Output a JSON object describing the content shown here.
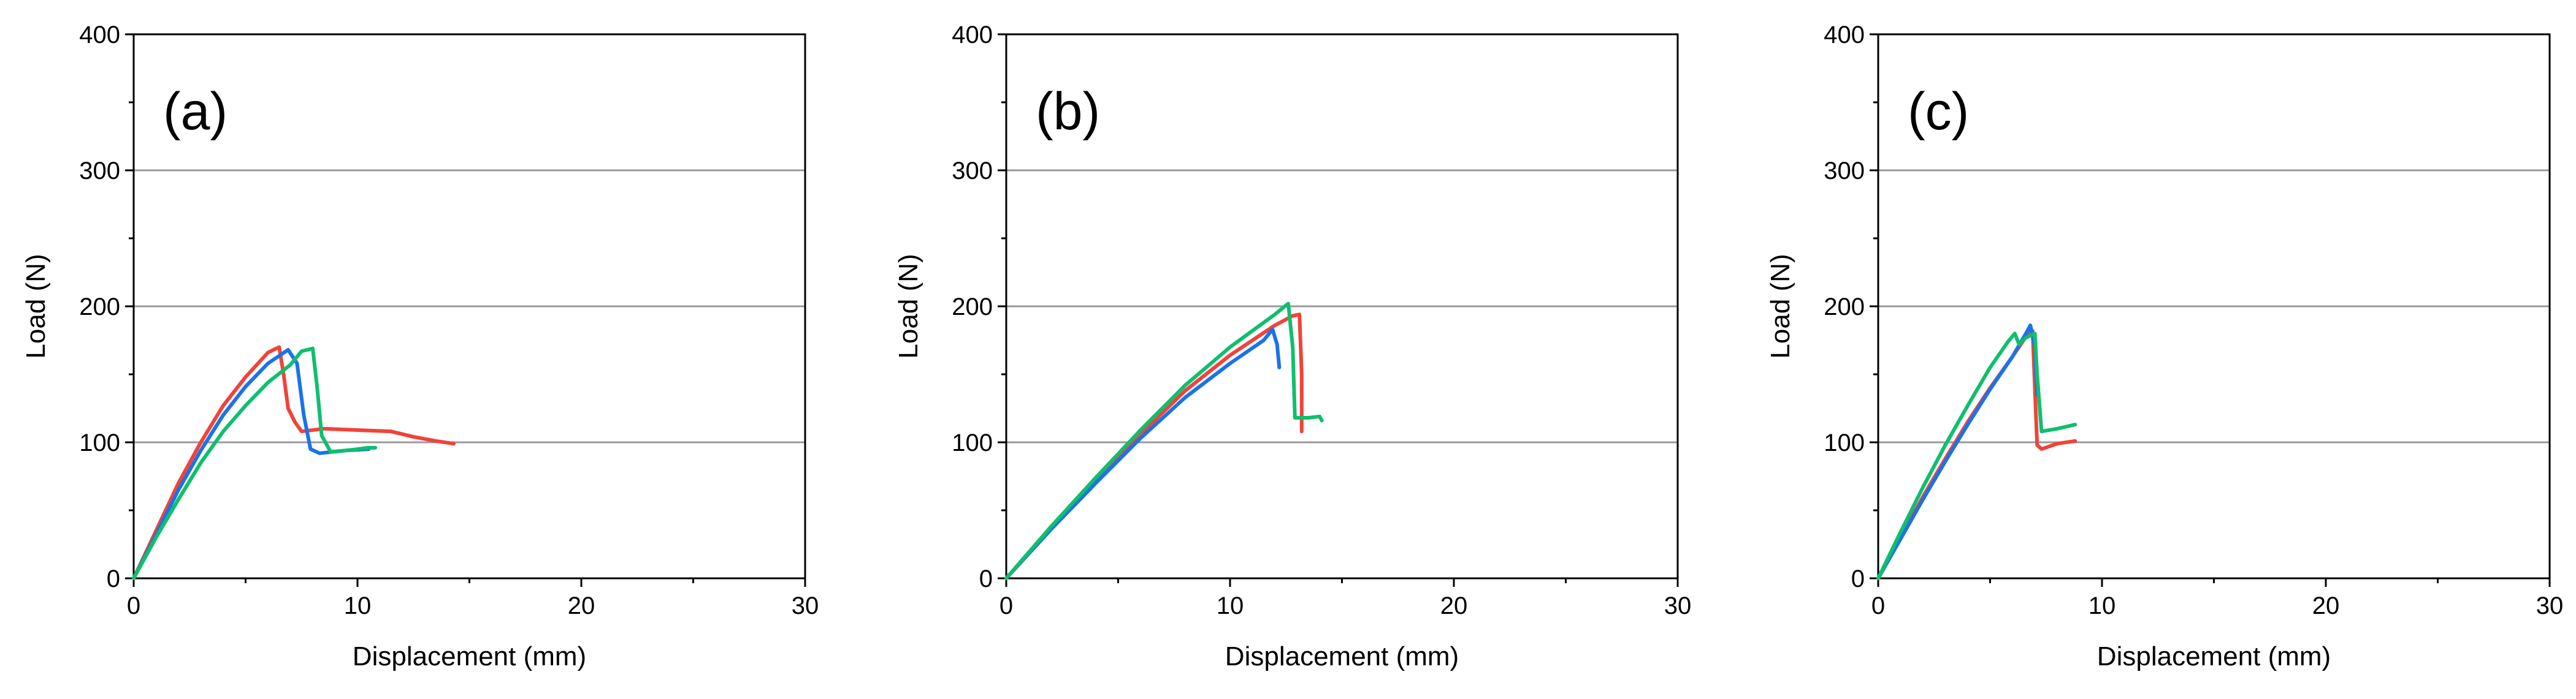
{
  "colors": {
    "red": "#f0433a",
    "blue": "#1a73e8",
    "green": "#0fbf6d",
    "grid": "#9a9a9a"
  },
  "chart_data": [
    {
      "type": "line",
      "panel_label": "(a)",
      "xlabel": "Displacement (mm)",
      "ylabel": "Load (N)",
      "xlim": [
        0,
        30
      ],
      "ylim": [
        0,
        400
      ],
      "xticks": [
        0,
        10,
        20,
        30
      ],
      "yticks": [
        0,
        100,
        200,
        300,
        400
      ],
      "grid": "horizontal",
      "series": [
        {
          "color": "#f0433a",
          "points": [
            [
              0,
              0
            ],
            [
              1,
              35
            ],
            [
              2,
              70
            ],
            [
              3,
              100
            ],
            [
              4,
              127
            ],
            [
              5,
              148
            ],
            [
              6,
              166
            ],
            [
              6.5,
              170
            ],
            [
              6.7,
              150
            ],
            [
              6.9,
              125
            ],
            [
              7.2,
              115
            ],
            [
              7.5,
              108
            ],
            [
              8.5,
              110
            ],
            [
              10,
              109
            ],
            [
              11.5,
              108
            ],
            [
              12.5,
              104
            ],
            [
              13.5,
              101
            ],
            [
              14.3,
              99
            ]
          ]
        },
        {
          "color": "#1a73e8",
          "points": [
            [
              0,
              0
            ],
            [
              1,
              32
            ],
            [
              2,
              65
            ],
            [
              3,
              94
            ],
            [
              4,
              120
            ],
            [
              5,
              141
            ],
            [
              6,
              158
            ],
            [
              6.9,
              168
            ],
            [
              7.3,
              158
            ],
            [
              7.6,
              120
            ],
            [
              7.9,
              95
            ],
            [
              8.3,
              92
            ],
            [
              9.5,
              94
            ],
            [
              10.5,
              95
            ]
          ]
        },
        {
          "color": "#0fbf6d",
          "points": [
            [
              0,
              0
            ],
            [
              1,
              30
            ],
            [
              2,
              58
            ],
            [
              3,
              85
            ],
            [
              4,
              108
            ],
            [
              5,
              127
            ],
            [
              6,
              144
            ],
            [
              7,
              157
            ],
            [
              7.5,
              167
            ],
            [
              8,
              169
            ],
            [
              8.2,
              140
            ],
            [
              8.4,
              105
            ],
            [
              8.8,
              93
            ],
            [
              9.5,
              94
            ],
            [
              10.5,
              96
            ],
            [
              10.8,
              96
            ]
          ]
        }
      ]
    },
    {
      "type": "line",
      "panel_label": "(b)",
      "xlabel": "Displacement (mm)",
      "ylabel": "Load (N)",
      "xlim": [
        0,
        30
      ],
      "ylim": [
        0,
        400
      ],
      "xticks": [
        0,
        10,
        20,
        30
      ],
      "yticks": [
        0,
        100,
        200,
        300,
        400
      ],
      "grid": "horizontal",
      "series": [
        {
          "color": "#f0433a",
          "points": [
            [
              0,
              0
            ],
            [
              2,
              37
            ],
            [
              4,
              72
            ],
            [
              6,
              106
            ],
            [
              8,
              138
            ],
            [
              10,
              164
            ],
            [
              12,
              186
            ],
            [
              12.8,
              193
            ],
            [
              13.1,
              194
            ],
            [
              13.2,
              150
            ],
            [
              13.2,
              108
            ]
          ]
        },
        {
          "color": "#1a73e8",
          "points": [
            [
              0,
              0
            ],
            [
              2,
              36
            ],
            [
              4,
              70
            ],
            [
              6,
              103
            ],
            [
              8,
              133
            ],
            [
              10,
              158
            ],
            [
              11.5,
              175
            ],
            [
              11.9,
              183
            ],
            [
              12.1,
              172
            ],
            [
              12.2,
              155
            ]
          ]
        },
        {
          "color": "#0fbf6d",
          "points": [
            [
              0,
              0
            ],
            [
              2,
              38
            ],
            [
              4,
              74
            ],
            [
              6,
              109
            ],
            [
              8,
              142
            ],
            [
              10,
              170
            ],
            [
              12,
              194
            ],
            [
              12.6,
              202
            ],
            [
              12.8,
              170
            ],
            [
              12.9,
              118
            ],
            [
              13.5,
              118
            ],
            [
              14,
              119
            ],
            [
              14.1,
              116
            ]
          ]
        }
      ]
    },
    {
      "type": "line",
      "panel_label": "(c)",
      "xlabel": "Displacement (mm)",
      "ylabel": "Load (N)",
      "xlim": [
        0,
        30
      ],
      "ylim": [
        0,
        400
      ],
      "xticks": [
        0,
        10,
        20,
        30
      ],
      "yticks": [
        0,
        100,
        200,
        300,
        400
      ],
      "grid": "horizontal",
      "series": [
        {
          "color": "#f0433a",
          "points": [
            [
              0,
              0
            ],
            [
              1,
              30
            ],
            [
              2,
              60
            ],
            [
              3,
              88
            ],
            [
              4,
              115
            ],
            [
              5,
              140
            ],
            [
              6,
              163
            ],
            [
              6.7,
              180
            ],
            [
              6.9,
              182
            ],
            [
              7.0,
              140
            ],
            [
              7.1,
              98
            ],
            [
              7.3,
              95
            ],
            [
              8,
              99
            ],
            [
              8.8,
              101
            ]
          ]
        },
        {
          "color": "#1a73e8",
          "points": [
            [
              0,
              0
            ],
            [
              1,
              29
            ],
            [
              2,
              58
            ],
            [
              3,
              86
            ],
            [
              4,
              113
            ],
            [
              5,
              139
            ],
            [
              6,
              163
            ],
            [
              6.6,
              180
            ],
            [
              6.8,
              186
            ],
            [
              7.0,
              170
            ],
            [
              7.1,
              135
            ]
          ]
        },
        {
          "color": "#0fbf6d",
          "points": [
            [
              0,
              0
            ],
            [
              1,
              34
            ],
            [
              2,
              67
            ],
            [
              3,
              98
            ],
            [
              4,
              127
            ],
            [
              5,
              155
            ],
            [
              5.8,
              174
            ],
            [
              6.1,
              180
            ],
            [
              6.3,
              172
            ],
            [
              6.6,
              177
            ],
            [
              7.0,
              180
            ],
            [
              7.1,
              150
            ],
            [
              7.3,
              108
            ],
            [
              8,
              110
            ],
            [
              8.8,
              113
            ]
          ]
        }
      ]
    }
  ]
}
